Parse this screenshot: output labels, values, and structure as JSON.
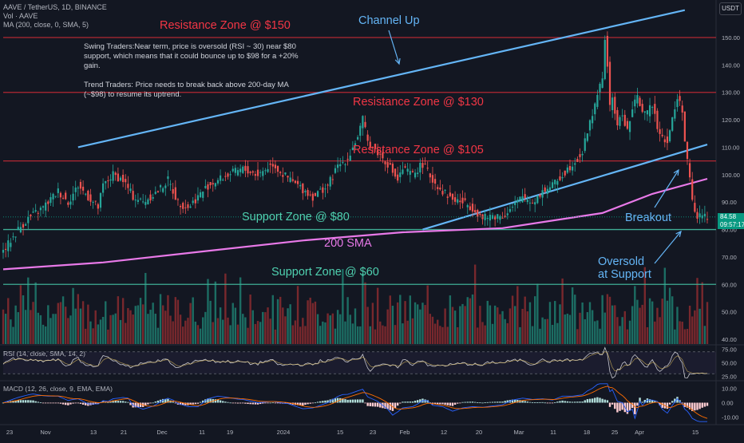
{
  "header": {
    "symbol_line": "AAVE / TetherUS, 1D, BINANCE",
    "vol_line": "Vol · AAVE",
    "ma_line": "MA (200, close, 0, SMA, 5)"
  },
  "currency_badge": "USDT",
  "notes": {
    "swing": "Swing Traders:Near term, price is oversold (RSI ~ 30) near $80 support, which means that it could bounce up to $98 for a +20% gain.",
    "trend": "Trend Traders: Price needs to break back above 200-day MA (~$98) to resume its uptrend."
  },
  "annotations": {
    "resistance_150": "Resistance Zone @ $150",
    "resistance_130": "Resistance Zone @ $130",
    "resistance_105": "Resistance Zone @ $105",
    "support_80": "Support Zone @ $80",
    "support_60": "Support Zone @ $60",
    "sma_200": "200 SMA",
    "channel_up": "Channel Up",
    "breakout": "Breakout",
    "oversold_1": "Oversold",
    "oversold_2": "at Support"
  },
  "price_tag": {
    "price": "84.58",
    "countdown": "09:57:17"
  },
  "panels": {
    "rsi_label": "RSI (14, close, SMA, 14, 2)",
    "macd_label": "MACD (12, 26, close, 9, EMA, EMA)"
  },
  "colors": {
    "background": "#131722",
    "up": "#26a69a",
    "down": "#ef5350",
    "resistance": "#f23645",
    "support": "#4fd1b0",
    "channel": "#64b5f6",
    "sma": "#e879e8"
  },
  "chart_data": [
    {
      "type": "candlestick",
      "y_axis_ticks": [
        150,
        140,
        130,
        120,
        110,
        100,
        90,
        80,
        70,
        60,
        50,
        40
      ],
      "ylim": [
        37,
        156
      ],
      "x_tick_labels": [
        "23",
        "Nov",
        "13",
        "21",
        "Dec",
        "11",
        "19",
        "2024",
        "15",
        "23",
        "Feb",
        "12",
        "20",
        "Mar",
        "11",
        "18",
        "25",
        "Apr",
        "15"
      ],
      "close_path": [
        [
          0,
          72
        ],
        [
          6,
          80
        ],
        [
          10,
          84
        ],
        [
          16,
          88
        ],
        [
          22,
          94
        ],
        [
          26,
          90
        ],
        [
          30,
          96
        ],
        [
          34,
          92
        ],
        [
          38,
          88
        ],
        [
          40,
          96
        ],
        [
          44,
          100
        ],
        [
          48,
          98
        ],
        [
          52,
          92
        ],
        [
          56,
          90
        ],
        [
          62,
          94
        ],
        [
          66,
          98
        ],
        [
          70,
          90
        ],
        [
          74,
          88
        ],
        [
          78,
          92
        ],
        [
          82,
          96
        ],
        [
          86,
          98
        ],
        [
          90,
          100
        ],
        [
          96,
          102
        ],
        [
          102,
          100
        ],
        [
          108,
          104
        ],
        [
          112,
          100
        ],
        [
          118,
          96
        ],
        [
          124,
          92
        ],
        [
          130,
          96
        ],
        [
          134,
          103
        ],
        [
          138,
          106
        ],
        [
          142,
          114
        ],
        [
          144,
          120
        ],
        [
          146,
          112
        ],
        [
          150,
          108
        ],
        [
          154,
          104
        ],
        [
          158,
          98
        ],
        [
          160,
          102
        ],
        [
          164,
          100
        ],
        [
          168,
          104
        ],
        [
          172,
          98
        ],
        [
          176,
          94
        ],
        [
          180,
          91
        ],
        [
          184,
          90
        ],
        [
          188,
          88
        ],
        [
          192,
          84
        ],
        [
          196,
          85
        ],
        [
          200,
          85
        ],
        [
          204,
          88
        ],
        [
          208,
          92
        ],
        [
          212,
          90
        ],
        [
          216,
          94
        ],
        [
          220,
          96
        ],
        [
          224,
          100
        ],
        [
          228,
          104
        ],
        [
          232,
          108
        ],
        [
          234,
          116
        ],
        [
          236,
          122
        ],
        [
          238,
          130
        ],
        [
          240,
          134
        ],
        [
          241,
          150
        ],
        [
          242,
          140
        ],
        [
          243,
          124
        ],
        [
          244,
          128
        ],
        [
          246,
          118
        ],
        [
          248,
          122
        ],
        [
          250,
          116
        ],
        [
          252,
          124
        ],
        [
          254,
          128
        ],
        [
          256,
          124
        ],
        [
          258,
          122
        ],
        [
          260,
          126
        ],
        [
          262,
          118
        ],
        [
          264,
          114
        ],
        [
          266,
          112
        ],
        [
          268,
          120
        ],
        [
          270,
          128
        ],
        [
          272,
          124
        ],
        [
          273,
          112
        ],
        [
          275,
          98
        ],
        [
          276,
          90
        ],
        [
          278,
          84
        ],
        [
          280,
          86
        ],
        [
          282,
          84.58
        ]
      ],
      "x_days": 282,
      "ma200_path": [
        [
          0,
          65.5
        ],
        [
          40,
          68
        ],
        [
          80,
          72
        ],
        [
          120,
          76
        ],
        [
          160,
          79
        ],
        [
          200,
          80.5
        ],
        [
          240,
          86
        ],
        [
          260,
          93
        ],
        [
          282,
          98.5
        ]
      ],
      "resistance_levels": [
        150,
        130,
        105
      ],
      "support_levels": [
        80,
        60
      ],
      "channel_lines": [
        {
          "x1": 30,
          "y1": 110,
          "x2": 273,
          "y2": 160
        },
        {
          "x1": 168,
          "y1": 80,
          "x2": 282,
          "y2": 111
        }
      ],
      "last_price": 84.58
    },
    {
      "type": "rsi",
      "y_axis_ticks": [
        75.0,
        50.0,
        25.0
      ],
      "ylim": [
        20,
        80
      ]
    },
    {
      "type": "macd",
      "y_axis_ticks": [
        10.0,
        0.0,
        -10.0
      ],
      "ylim": [
        -14,
        14
      ]
    }
  ]
}
